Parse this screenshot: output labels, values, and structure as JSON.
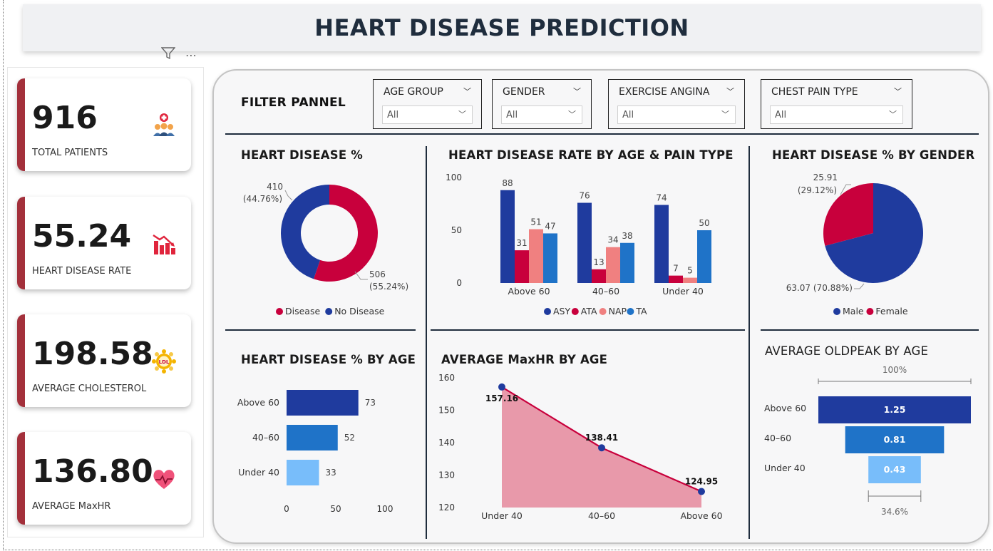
{
  "header": {
    "title": "HEART DISEASE PREDICTION"
  },
  "kpis": [
    {
      "value": "916",
      "label": "TOTAL PATIENTS",
      "icon": "patients-icon"
    },
    {
      "value": "55.24",
      "label": "HEART DISEASE RATE",
      "icon": "chart-down-icon"
    },
    {
      "value": "198.58",
      "label": "AVERAGE CHOLESTEROL",
      "icon": "ldl-cholesterol-icon"
    },
    {
      "value": "136.80",
      "label": "AVERAGE MaxHR",
      "icon": "heartbeat-icon"
    }
  ],
  "filter_panel": {
    "title": "FILTER PANNEL",
    "slicers": [
      {
        "title": "AGE GROUP",
        "value": "All"
      },
      {
        "title": "GENDER",
        "value": "All"
      },
      {
        "title": "EXERCISE ANGINA",
        "value": "All"
      },
      {
        "title": "CHEST PAIN TYPE",
        "value": "All"
      }
    ]
  },
  "colors": {
    "accent_stripe": "#a3303b",
    "disease": "#c8003c",
    "no_disease": "#1f3b9e",
    "asy": "#1f3b9e",
    "ata": "#c8003c",
    "nap": "#f08080",
    "ta": "#1f73c8",
    "age_above60": "#1f3b9e",
    "age_40_60": "#1f73c8",
    "age_under40": "#78bdfa",
    "area_fill": "#e899aa",
    "area_line": "#c8003c"
  },
  "chart_data": [
    {
      "id": "donut",
      "type": "pie",
      "title": "HEART DISEASE %",
      "labels": [
        "Disease",
        "No Disease"
      ],
      "values": [
        506,
        410
      ],
      "data_labels": [
        {
          "value": "506",
          "pct": "(55.24%)"
        },
        {
          "value": "410",
          "pct": "(44.76%)"
        }
      ],
      "legend": [
        "Disease",
        "No Disease"
      ],
      "legend_position": "bottom"
    },
    {
      "id": "age_pain",
      "type": "bar",
      "title": "HEART DISEASE RATE BY AGE & PAIN TYPE",
      "categories": [
        "Above 60",
        "40–60",
        "Under 40"
      ],
      "series": [
        {
          "name": "ASY",
          "values": [
            88,
            76,
            74
          ]
        },
        {
          "name": "ATA",
          "values": [
            31,
            13,
            7
          ]
        },
        {
          "name": "NAP",
          "values": [
            51,
            34,
            5
          ]
        },
        {
          "name": "TA",
          "values": [
            47,
            38,
            50
          ]
        }
      ],
      "yticks": [
        "100",
        "50",
        "0"
      ],
      "ylim": [
        0,
        100
      ],
      "legend_position": "bottom"
    },
    {
      "id": "gender",
      "type": "pie",
      "title": "HEART DISEASE % BY GENDER",
      "labels": [
        "Male",
        "Female"
      ],
      "values": [
        63.07,
        25.91
      ],
      "data_labels": [
        {
          "text": "63.07 (70.88%)"
        },
        {
          "value": "25.91",
          "pct": "(29.12%)"
        }
      ],
      "legend": [
        "Male",
        "Female"
      ],
      "legend_position": "bottom"
    },
    {
      "id": "by_age",
      "type": "bar",
      "orientation": "horizontal",
      "title": "HEART DISEASE % BY AGE",
      "categories": [
        "Above 60",
        "40–60",
        "Under 40"
      ],
      "values": [
        73,
        52,
        33
      ],
      "xticks": [
        "0",
        "50",
        "100"
      ],
      "xlim": [
        0,
        100
      ]
    },
    {
      "id": "maxhr",
      "type": "area",
      "title": "AVERAGE MaxHR BY AGE",
      "categories": [
        "Under 40",
        "40–60",
        "Above 60"
      ],
      "values": [
        157.16,
        138.41,
        124.95
      ],
      "data_labels": [
        "157.16",
        "138.41",
        "124.95"
      ],
      "yticks": [
        "160",
        "150",
        "140",
        "130",
        "120"
      ],
      "ylim": [
        120,
        160
      ]
    },
    {
      "id": "oldpeak",
      "type": "bar",
      "orientation": "funnel",
      "title": "AVERAGE OLDPEAK BY AGE",
      "categories": [
        "Above 60",
        "40–60",
        "Under 40"
      ],
      "values": [
        1.25,
        0.81,
        0.43
      ],
      "data_labels": [
        "1.25",
        "0.81",
        "0.43"
      ],
      "top_label": "100%",
      "bottom_label": "34.6%"
    }
  ]
}
